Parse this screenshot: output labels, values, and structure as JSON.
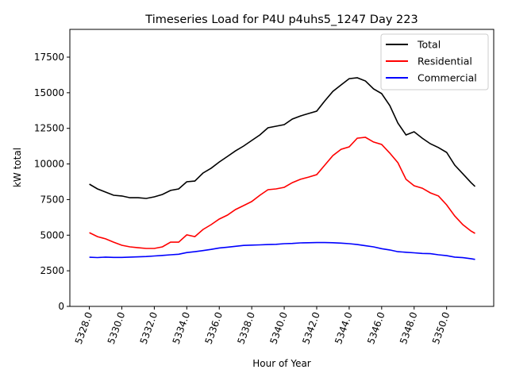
{
  "chart_data": {
    "type": "line",
    "title": "Timeseries Load for P4U p4uhs5_1247  Day 223",
    "xlabel": "Hour of Year",
    "ylabel": "kW total",
    "xlim": [
      5326.8,
      5352.9
    ],
    "ylim": [
      0,
      19450
    ],
    "xticks": [
      5328,
      5330,
      5332,
      5334,
      5336,
      5338,
      5340,
      5342,
      5344,
      5346,
      5348,
      5350
    ],
    "xtick_labels": [
      "5328.0",
      "5330.0",
      "5332.0",
      "5334.0",
      "5336.0",
      "5338.0",
      "5340.0",
      "5342.0",
      "5344.0",
      "5346.0",
      "5348.0",
      "5350.0"
    ],
    "yticks": [
      0,
      2500,
      5000,
      7500,
      10000,
      12500,
      15000,
      17500
    ],
    "ytick_labels": [
      "0",
      "2500",
      "5000",
      "7500",
      "10000",
      "12500",
      "15000",
      "17500"
    ],
    "grid": false,
    "legend_position": "top-right",
    "x": [
      5328,
      5328.5,
      5329,
      5329.5,
      5330,
      5330.5,
      5331,
      5331.5,
      5332,
      5332.5,
      5333,
      5333.5,
      5334,
      5334.5,
      5335,
      5335.5,
      5336,
      5336.5,
      5337,
      5337.5,
      5338,
      5338.5,
      5339,
      5339.5,
      5340,
      5340.5,
      5341,
      5341.5,
      5342,
      5342.5,
      5343,
      5343.5,
      5344,
      5344.5,
      5345,
      5345.5,
      5346,
      5346.5,
      5347,
      5347.5,
      5348,
      5348.5,
      5349,
      5349.5,
      5350,
      5350.5,
      5351,
      5351.5,
      5351.75
    ],
    "series": [
      {
        "name": "Total",
        "color": "#000000",
        "values": [
          8580,
          8250,
          8025,
          7800,
          7750,
          7630,
          7630,
          7580,
          7690,
          7860,
          8140,
          8250,
          8750,
          8800,
          9360,
          9700,
          10140,
          10530,
          10920,
          11260,
          11650,
          12040,
          12540,
          12650,
          12760,
          13150,
          13370,
          13540,
          13710,
          14430,
          15100,
          15550,
          15990,
          16050,
          15830,
          15270,
          14940,
          14100,
          12870,
          12040,
          12260,
          11810,
          11420,
          11150,
          10810,
          9920,
          9310,
          8690,
          8420
        ]
      },
      {
        "name": "Residential",
        "color": "#ff0000",
        "values": [
          5180,
          4900,
          4740,
          4510,
          4290,
          4180,
          4120,
          4070,
          4070,
          4180,
          4510,
          4510,
          5020,
          4900,
          5400,
          5740,
          6130,
          6410,
          6800,
          7080,
          7360,
          7800,
          8190,
          8250,
          8360,
          8690,
          8920,
          9080,
          9250,
          9920,
          10590,
          11030,
          11200,
          11810,
          11870,
          11540,
          11370,
          10760,
          10090,
          8920,
          8470,
          8300,
          7970,
          7750,
          7130,
          6350,
          5740,
          5290,
          5130
        ]
      },
      {
        "name": "Commercial",
        "color": "#0000ff",
        "values": [
          3450,
          3430,
          3460,
          3440,
          3440,
          3460,
          3480,
          3500,
          3540,
          3580,
          3620,
          3660,
          3780,
          3840,
          3920,
          4000,
          4100,
          4160,
          4220,
          4280,
          4300,
          4320,
          4340,
          4360,
          4400,
          4420,
          4460,
          4470,
          4480,
          4480,
          4470,
          4440,
          4400,
          4340,
          4260,
          4180,
          4050,
          3960,
          3840,
          3800,
          3760,
          3720,
          3700,
          3620,
          3560,
          3460,
          3420,
          3350,
          3300
        ]
      }
    ]
  }
}
